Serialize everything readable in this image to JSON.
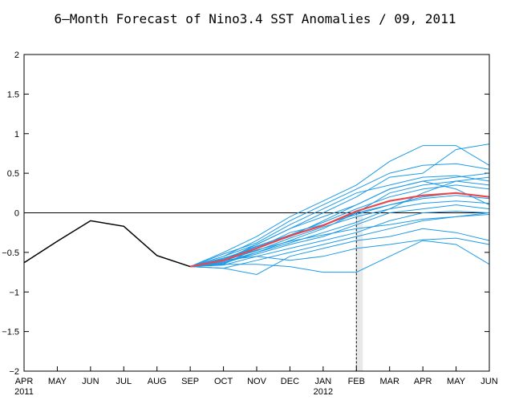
{
  "chart_data": {
    "type": "line",
    "title": "6–Month Forecast of Nino3.4 SST Anomalies / 09, 2011",
    "x_months": [
      "APR",
      "MAY",
      "JUN",
      "JUL",
      "AUG",
      "SEP",
      "OCT",
      "NOV",
      "DEC",
      "JAN",
      "FEB",
      "MAR",
      "APR",
      "MAY",
      "JUN"
    ],
    "x_year_labels": [
      {
        "index": 0,
        "label": "2011"
      },
      {
        "index": 9,
        "label": "2012"
      }
    ],
    "ylim": [
      -2,
      2
    ],
    "yticks": [
      -2,
      -1.5,
      -1,
      -0.5,
      0,
      0.5,
      1,
      1.5,
      2
    ],
    "ytick_labels": [
      "−2",
      "−1.5",
      "−1",
      "−0.5",
      "0",
      "0.5",
      "1",
      "1.5",
      "2"
    ],
    "grid": false,
    "reference_line_y": 0,
    "forecast_marker_index": 10,
    "observed": {
      "x": [
        0,
        1,
        2,
        3,
        4,
        5
      ],
      "y": [
        -0.63,
        -0.36,
        -0.1,
        -0.17,
        -0.54,
        -0.68
      ],
      "color": "#000000"
    },
    "ensemble_mean": {
      "x": [
        5,
        6,
        7,
        8,
        9,
        10,
        11,
        12,
        13,
        14
      ],
      "y": [
        -0.68,
        -0.6,
        -0.45,
        -0.29,
        -0.16,
        0.02,
        0.15,
        0.22,
        0.25,
        0.2
      ],
      "color": "#e8474c"
    },
    "members_color": "#1e9be8",
    "members": [
      {
        "x": [
          5,
          6,
          7,
          8,
          9,
          10,
          11,
          12,
          13,
          14
        ],
        "y": [
          -0.68,
          -0.55,
          -0.35,
          -0.1,
          0.1,
          0.3,
          0.5,
          0.6,
          0.62,
          0.55
        ]
      },
      {
        "x": [
          5,
          6,
          7,
          8,
          9,
          10,
          11,
          12,
          13,
          14
        ],
        "y": [
          -0.68,
          -0.5,
          -0.3,
          -0.05,
          0.15,
          0.35,
          0.65,
          0.85,
          0.85,
          0.6
        ]
      },
      {
        "x": [
          5,
          6,
          7,
          8,
          9,
          10,
          11,
          12,
          13,
          14
        ],
        "y": [
          -0.68,
          -0.6,
          -0.4,
          -0.2,
          0.0,
          0.2,
          0.45,
          0.5,
          0.8,
          0.87
        ]
      },
      {
        "x": [
          5,
          6,
          7,
          8,
          9,
          10,
          11,
          12,
          13,
          14
        ],
        "y": [
          -0.68,
          -0.52,
          -0.38,
          -0.15,
          0.05,
          0.25,
          0.35,
          0.45,
          0.47,
          0.4
        ]
      },
      {
        "x": [
          5,
          6,
          7,
          8,
          9,
          10,
          11,
          12,
          13,
          14
        ],
        "y": [
          -0.68,
          -0.65,
          -0.45,
          -0.3,
          -0.1,
          0.1,
          0.3,
          0.4,
          0.45,
          0.5
        ]
      },
      {
        "x": [
          5,
          6,
          7,
          8,
          9,
          10,
          11,
          12,
          13,
          14
        ],
        "y": [
          -0.68,
          -0.58,
          -0.42,
          -0.28,
          -0.12,
          0.05,
          0.2,
          0.3,
          0.35,
          0.3
        ]
      },
      {
        "x": [
          5,
          6,
          7,
          8,
          9,
          10,
          11,
          12,
          13,
          14
        ],
        "y": [
          -0.68,
          -0.62,
          -0.5,
          -0.35,
          -0.2,
          0.0,
          0.1,
          0.2,
          0.25,
          0.2
        ]
      },
      {
        "x": [
          5,
          6,
          7,
          8,
          9,
          10,
          11,
          12,
          13,
          14
        ],
        "y": [
          -0.68,
          -0.6,
          -0.48,
          -0.32,
          -0.18,
          -0.05,
          0.05,
          0.12,
          0.15,
          0.12
        ]
      },
      {
        "x": [
          5,
          6,
          7,
          8,
          9,
          10,
          11,
          12,
          13,
          14
        ],
        "y": [
          -0.68,
          -0.63,
          -0.52,
          -0.4,
          -0.3,
          -0.15,
          0.0,
          0.05,
          0.1,
          0.05
        ]
      },
      {
        "x": [
          5,
          6,
          7,
          8,
          9,
          10,
          11,
          12,
          13,
          14
        ],
        "y": [
          -0.68,
          -0.66,
          -0.55,
          -0.45,
          -0.35,
          -0.25,
          -0.1,
          0.0,
          0.02,
          0.0
        ]
      },
      {
        "x": [
          5,
          6,
          7,
          8,
          9,
          10,
          11,
          12,
          13,
          14
        ],
        "y": [
          -0.68,
          -0.7,
          -0.6,
          -0.5,
          -0.4,
          -0.3,
          -0.2,
          -0.1,
          -0.05,
          0.0
        ]
      },
      {
        "x": [
          5,
          6,
          7,
          8,
          9,
          10,
          11,
          12,
          13,
          14
        ],
        "y": [
          -0.68,
          -0.7,
          -0.78,
          -0.55,
          -0.45,
          -0.35,
          -0.3,
          -0.2,
          -0.25,
          -0.35
        ]
      },
      {
        "x": [
          5,
          6,
          7,
          8,
          9,
          10,
          11,
          12,
          13,
          14
        ],
        "y": [
          -0.68,
          -0.6,
          -0.55,
          -0.6,
          -0.55,
          -0.45,
          -0.4,
          -0.34,
          -0.32,
          -0.4
        ]
      },
      {
        "x": [
          5,
          6,
          7,
          8,
          9,
          10,
          11,
          12,
          13,
          14
        ],
        "y": [
          -0.68,
          -0.65,
          -0.65,
          -0.68,
          -0.75,
          -0.75,
          -0.55,
          -0.35,
          -0.4,
          -0.65
        ]
      },
      {
        "x": [
          5,
          6,
          7,
          8,
          9,
          10,
          11,
          12,
          13,
          14
        ],
        "y": [
          -0.68,
          -0.55,
          -0.4,
          -0.2,
          -0.05,
          0.1,
          0.3,
          0.4,
          0.3,
          0.1
        ]
      },
      {
        "x": [
          5,
          6,
          7,
          8,
          9,
          10,
          11,
          12,
          13,
          14
        ],
        "y": [
          -0.68,
          -0.57,
          -0.45,
          -0.25,
          -0.15,
          0.0,
          0.25,
          0.35,
          0.4,
          0.35
        ]
      },
      {
        "x": [
          5,
          6,
          7,
          8,
          9,
          10,
          11,
          12,
          13,
          14
        ],
        "y": [
          -0.68,
          -0.64,
          -0.5,
          -0.38,
          -0.25,
          -0.12,
          0.05,
          0.25,
          0.4,
          0.45
        ]
      },
      {
        "x": [
          5,
          6,
          7,
          8,
          9,
          10,
          11,
          12,
          13,
          14
        ],
        "y": [
          -0.68,
          -0.59,
          -0.43,
          -0.3,
          -0.15,
          -0.02,
          0.1,
          0.18,
          0.22,
          0.18
        ]
      },
      {
        "x": [
          5,
          6,
          7,
          8,
          9,
          10,
          11,
          12,
          13,
          14
        ],
        "y": [
          -0.68,
          -0.61,
          -0.47,
          -0.36,
          -0.28,
          -0.2,
          -0.15,
          -0.08,
          -0.05,
          -0.02
        ]
      }
    ]
  }
}
